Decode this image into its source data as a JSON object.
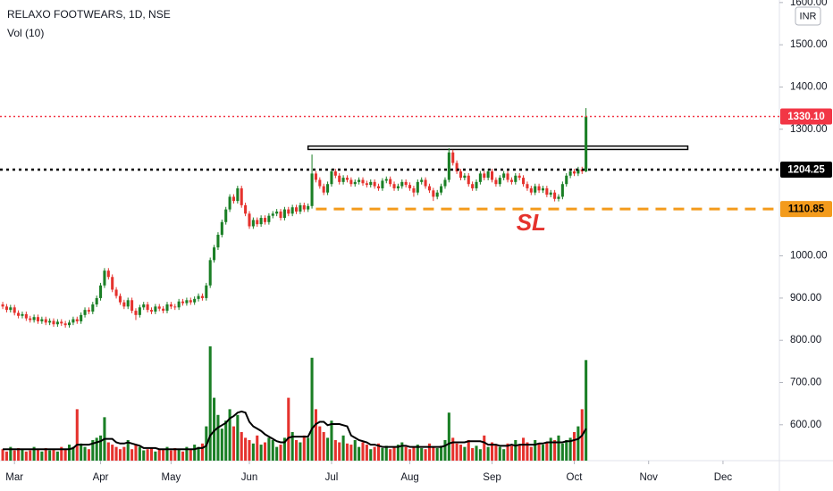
{
  "chart_data": {
    "type": "candlestick",
    "title": "RELAXO FOOTWEARS, 1D, NSE",
    "indicator_label": "Vol (10)",
    "currency": "INR",
    "up_color": "#1a7f25",
    "down_color": "#e5322d",
    "ma_color": "#000000",
    "xlim": [
      -0.7,
      198.4
    ],
    "ylim": [
      515,
      1606
    ],
    "y2lim": [
      0,
      403
    ],
    "xticks": [
      {
        "value": 3,
        "label": "Mar"
      },
      {
        "value": 25,
        "label": "Apr"
      },
      {
        "value": 43,
        "label": "May"
      },
      {
        "value": 63,
        "label": "Jun"
      },
      {
        "value": 84,
        "label": "Jul"
      },
      {
        "value": 104,
        "label": "Aug"
      },
      {
        "value": 125,
        "label": "Sep"
      },
      {
        "value": 146,
        "label": "Oct"
      },
      {
        "value": 165,
        "label": "Nov"
      },
      {
        "value": 184,
        "label": "Dec"
      }
    ],
    "yticks": [
      {
        "value": 600,
        "label": "600.00"
      },
      {
        "value": 700,
        "label": "700.00"
      },
      {
        "value": 800,
        "label": "800.00"
      },
      {
        "value": 900,
        "label": "900.00"
      },
      {
        "value": 1000,
        "label": "1000.00"
      },
      {
        "value": 1300,
        "label": "1300.00"
      },
      {
        "value": 1400,
        "label": "1400.00"
      },
      {
        "value": 1500,
        "label": "1500.00"
      },
      {
        "value": 1600,
        "label": "1600.00"
      }
    ],
    "price_lines": [
      {
        "value": 1330.1,
        "label": "1330.10",
        "color": "#f23645",
        "text_color": "#ffffff",
        "style": "dotted",
        "from": -0.7
      },
      {
        "value": 1204.25,
        "label": "1204.25",
        "color": "#000000",
        "text_color": "#ffffff",
        "style": "dotted",
        "from": -0.7
      },
      {
        "value": 1110.85,
        "label": "1110.85",
        "color": "#f39b1c",
        "text_color": "#000000",
        "style": "dashed",
        "from": 80
      }
    ],
    "rectangle": {
      "x": [
        78,
        175
      ],
      "y": [
        1252,
        1260
      ]
    },
    "annotation": {
      "text": "SL",
      "x": 135,
      "y": 1075,
      "color": "#e5322d"
    },
    "x": [
      0,
      1,
      2,
      3,
      4,
      5,
      6,
      7,
      8,
      9,
      10,
      11,
      12,
      13,
      14,
      15,
      16,
      17,
      18,
      19,
      20,
      21,
      22,
      23,
      24,
      25,
      26,
      27,
      28,
      29,
      30,
      31,
      32,
      33,
      34,
      35,
      36,
      37,
      38,
      39,
      40,
      41,
      42,
      43,
      44,
      45,
      46,
      47,
      48,
      49,
      50,
      51,
      52,
      53,
      54,
      55,
      56,
      57,
      58,
      59,
      60,
      61,
      62,
      63,
      64,
      65,
      66,
      67,
      68,
      69,
      70,
      71,
      72,
      73,
      74,
      75,
      76,
      77,
      78,
      79,
      80,
      81,
      82,
      83,
      84,
      85,
      86,
      87,
      88,
      89,
      90,
      91,
      92,
      93,
      94,
      95,
      96,
      97,
      98,
      99,
      100,
      101,
      102,
      103,
      104,
      105,
      106,
      107,
      108,
      109,
      110,
      111,
      112,
      113,
      114,
      115,
      116,
      117,
      118,
      119,
      120,
      121,
      122,
      123,
      124,
      125,
      126,
      127,
      128,
      129,
      130,
      131,
      132,
      133,
      134,
      135,
      136,
      137,
      138,
      139,
      140,
      141,
      142,
      143,
      144,
      145,
      146,
      147,
      148,
      149
    ],
    "open": [
      885,
      880,
      872,
      878,
      865,
      858,
      862,
      852,
      848,
      855,
      845,
      850,
      842,
      846,
      838,
      844,
      840,
      836,
      842,
      850,
      845,
      860,
      872,
      868,
      885,
      900,
      930,
      965,
      950,
      920,
      905,
      890,
      880,
      895,
      870,
      860,
      878,
      885,
      872,
      868,
      880,
      875,
      870,
      885,
      880,
      878,
      892,
      888,
      895,
      890,
      898,
      905,
      900,
      930,
      990,
      1020,
      1050,
      1080,
      1110,
      1140,
      1130,
      1160,
      1120,
      1100,
      1070,
      1085,
      1075,
      1090,
      1080,
      1095,
      1100,
      1105,
      1090,
      1110,
      1100,
      1115,
      1105,
      1120,
      1110,
      1118,
      1195,
      1180,
      1165,
      1150,
      1170,
      1200,
      1190,
      1175,
      1185,
      1180,
      1170,
      1175,
      1180,
      1172,
      1168,
      1175,
      1165,
      1160,
      1178,
      1182,
      1170,
      1160,
      1165,
      1175,
      1168,
      1160,
      1150,
      1175,
      1180,
      1165,
      1155,
      1140,
      1150,
      1165,
      1180,
      1245,
      1220,
      1200,
      1185,
      1190,
      1170,
      1160,
      1175,
      1195,
      1185,
      1200,
      1180,
      1170,
      1185,
      1195,
      1180,
      1175,
      1190,
      1185,
      1170,
      1160,
      1150,
      1165,
      1155,
      1160,
      1145,
      1150,
      1135,
      1140,
      1170,
      1190,
      1200,
      1195,
      1205,
      1200
    ],
    "high": [
      891,
      886,
      884,
      884,
      871,
      868,
      868,
      858,
      861,
      861,
      856,
      856,
      852,
      852,
      850,
      850,
      846,
      848,
      856,
      856,
      866,
      878,
      878,
      891,
      906,
      936,
      971,
      971,
      956,
      926,
      911,
      896,
      901,
      901,
      876,
      884,
      891,
      891,
      878,
      886,
      886,
      881,
      891,
      891,
      886,
      898,
      898,
      901,
      901,
      904,
      911,
      911,
      936,
      996,
      1026,
      1056,
      1086,
      1116,
      1146,
      1146,
      1166,
      1166,
      1126,
      1106,
      1091,
      1091,
      1096,
      1096,
      1101,
      1106,
      1111,
      1111,
      1116,
      1116,
      1121,
      1121,
      1126,
      1126,
      1124,
      1240,
      1201,
      1186,
      1171,
      1176,
      1206,
      1206,
      1196,
      1191,
      1191,
      1186,
      1181,
      1186,
      1186,
      1178,
      1181,
      1181,
      1171,
      1184,
      1188,
      1188,
      1176,
      1171,
      1181,
      1181,
      1174,
      1166,
      1181,
      1186,
      1186,
      1171,
      1161,
      1156,
      1171,
      1186,
      1255,
      1251,
      1226,
      1206,
      1196,
      1196,
      1176,
      1181,
      1201,
      1201,
      1206,
      1206,
      1186,
      1191,
      1201,
      1201,
      1186,
      1196,
      1196,
      1191,
      1176,
      1166,
      1171,
      1171,
      1166,
      1166,
      1156,
      1156,
      1146,
      1176,
      1196,
      1206,
      1206,
      1211,
      1211,
      1350
    ],
    "low": [
      874,
      866,
      866,
      859,
      852,
      852,
      846,
      842,
      842,
      839,
      839,
      836,
      836,
      832,
      832,
      834,
      830,
      830,
      836,
      839,
      839,
      854,
      862,
      862,
      879,
      894,
      924,
      944,
      914,
      899,
      884,
      874,
      874,
      864,
      848,
      854,
      872,
      866,
      862,
      862,
      869,
      864,
      864,
      874,
      872,
      872,
      882,
      882,
      884,
      884,
      892,
      894,
      894,
      924,
      984,
      1014,
      1044,
      1074,
      1104,
      1124,
      1124,
      1114,
      1094,
      1064,
      1064,
      1069,
      1069,
      1074,
      1074,
      1089,
      1094,
      1084,
      1084,
      1094,
      1094,
      1099,
      1099,
      1104,
      1104,
      1112,
      1174,
      1159,
      1144,
      1144,
      1164,
      1184,
      1169,
      1169,
      1174,
      1164,
      1164,
      1169,
      1166,
      1162,
      1162,
      1159,
      1154,
      1154,
      1172,
      1164,
      1154,
      1154,
      1159,
      1162,
      1154,
      1140,
      1144,
      1169,
      1159,
      1149,
      1130,
      1134,
      1144,
      1159,
      1174,
      1214,
      1194,
      1179,
      1179,
      1164,
      1154,
      1154,
      1169,
      1179,
      1179,
      1174,
      1164,
      1164,
      1179,
      1174,
      1169,
      1169,
      1179,
      1164,
      1154,
      1144,
      1144,
      1149,
      1149,
      1139,
      1139,
      1129,
      1129,
      1134,
      1164,
      1184,
      1189,
      1189,
      1194,
      1198
    ],
    "close": [
      880,
      872,
      878,
      865,
      858,
      862,
      852,
      848,
      855,
      845,
      850,
      842,
      846,
      838,
      844,
      840,
      836,
      842,
      850,
      845,
      860,
      872,
      868,
      885,
      900,
      930,
      965,
      950,
      920,
      905,
      890,
      880,
      895,
      870,
      860,
      878,
      885,
      872,
      868,
      880,
      875,
      870,
      885,
      880,
      878,
      892,
      888,
      895,
      890,
      898,
      905,
      900,
      930,
      990,
      1020,
      1050,
      1080,
      1110,
      1140,
      1130,
      1160,
      1120,
      1100,
      1070,
      1085,
      1075,
      1090,
      1080,
      1095,
      1100,
      1105,
      1090,
      1110,
      1100,
      1115,
      1105,
      1120,
      1110,
      1118,
      1195,
      1180,
      1165,
      1150,
      1170,
      1200,
      1190,
      1175,
      1185,
      1180,
      1170,
      1175,
      1180,
      1172,
      1168,
      1175,
      1165,
      1160,
      1178,
      1182,
      1170,
      1160,
      1165,
      1175,
      1168,
      1160,
      1150,
      1175,
      1180,
      1165,
      1155,
      1140,
      1150,
      1165,
      1180,
      1245,
      1220,
      1200,
      1185,
      1190,
      1170,
      1160,
      1175,
      1195,
      1185,
      1200,
      1180,
      1170,
      1185,
      1195,
      1180,
      1175,
      1190,
      1185,
      1170,
      1160,
      1150,
      1165,
      1155,
      1160,
      1145,
      1150,
      1135,
      1140,
      1170,
      1190,
      1200,
      1195,
      1205,
      1200,
      1330
    ],
    "volume": [
      10,
      8,
      12,
      9,
      11,
      10,
      8,
      9,
      12,
      10,
      8,
      11,
      9,
      10,
      8,
      12,
      10,
      14,
      12,
      45,
      15,
      12,
      10,
      18,
      20,
      22,
      38,
      16,
      14,
      12,
      10,
      12,
      18,
      10,
      14,
      12,
      9,
      10,
      11,
      8,
      10,
      10,
      12,
      9,
      11,
      10,
      8,
      12,
      10,
      14,
      12,
      15,
      30,
      100,
      55,
      40,
      28,
      35,
      45,
      30,
      40,
      25,
      20,
      18,
      15,
      22,
      14,
      16,
      20,
      18,
      12,
      14,
      20,
      55,
      25,
      18,
      16,
      22,
      20,
      90,
      45,
      30,
      25,
      20,
      35,
      18,
      16,
      22,
      15,
      14,
      18,
      12,
      16,
      14,
      10,
      12,
      15,
      11,
      13,
      10,
      12,
      14,
      16,
      12,
      10,
      12,
      14,
      11,
      10,
      15,
      12,
      11,
      13,
      18,
      42,
      20,
      15,
      14,
      12,
      18,
      11,
      13,
      10,
      22,
      12,
      16,
      14,
      12,
      10,
      15,
      13,
      18,
      14,
      20,
      16,
      12,
      18,
      15,
      14,
      16,
      20,
      18,
      22,
      15,
      18,
      20,
      25,
      30,
      45,
      88
    ],
    "volume_ma": [
      10,
      10,
      10,
      10,
      10,
      10,
      10,
      10,
      10,
      10,
      10,
      10,
      10,
      10,
      10,
      10,
      10,
      10,
      11,
      14,
      14,
      14,
      14,
      15,
      16,
      17,
      19,
      19,
      19,
      16,
      15,
      15,
      16,
      15,
      14,
      13,
      11,
      11,
      11,
      11,
      10,
      10,
      10,
      10,
      10,
      10,
      10,
      10,
      10,
      10,
      11,
      11,
      13,
      22,
      26,
      29,
      31,
      33,
      37,
      39,
      42,
      43,
      42,
      34,
      30,
      28,
      26,
      23,
      21,
      19,
      17,
      16,
      16,
      20,
      21,
      21,
      21,
      21,
      21,
      28,
      32,
      34,
      34,
      31,
      32,
      32,
      32,
      31,
      30,
      22,
      20,
      18,
      17,
      16,
      14,
      14,
      13,
      12,
      12,
      12,
      12,
      12,
      13,
      13,
      12,
      12,
      12,
      12,
      12,
      12,
      12,
      12,
      12,
      13,
      15,
      16,
      16,
      16,
      16,
      17,
      17,
      17,
      17,
      16,
      14,
      14,
      14,
      13,
      13,
      13,
      14,
      13,
      14,
      14,
      14,
      14,
      14,
      15,
      15,
      16,
      16,
      16,
      16,
      16,
      17,
      17,
      18,
      19,
      22,
      28
    ]
  }
}
